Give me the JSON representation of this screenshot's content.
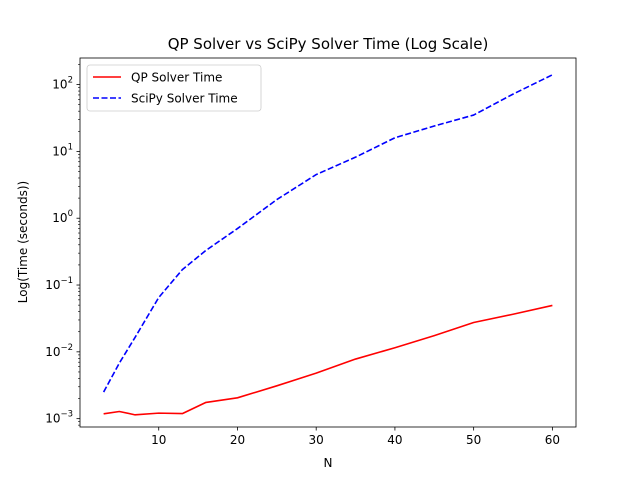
{
  "chart_data": {
    "type": "line",
    "title": "QP Solver vs SciPy Solver Time (Log Scale)",
    "xlabel": "N",
    "ylabel": "Log(Time (seconds))",
    "xlim": [
      0,
      63
    ],
    "ylim": [
      0.00075,
      250
    ],
    "y_scale": "log",
    "x_ticks": [
      10,
      20,
      30,
      40,
      50,
      60
    ],
    "y_ticks": [
      {
        "value": 0.001,
        "base": "10",
        "exp": "−3"
      },
      {
        "value": 0.01,
        "base": "10",
        "exp": "−2"
      },
      {
        "value": 0.1,
        "base": "10",
        "exp": "−1"
      },
      {
        "value": 1,
        "base": "10",
        "exp": "0"
      },
      {
        "value": 10,
        "base": "10",
        "exp": "1"
      },
      {
        "value": 100,
        "base": "10",
        "exp": "2"
      }
    ],
    "grid": false,
    "legend_position": "top-left",
    "series": [
      {
        "name": "QP Solver Time",
        "color": "#ff0000",
        "style": "solid",
        "x": [
          3,
          5,
          7,
          10,
          13,
          16,
          20,
          25,
          30,
          35,
          40,
          45,
          50,
          55,
          60
        ],
        "y": [
          0.00118,
          0.00128,
          0.00114,
          0.00121,
          0.00119,
          0.00175,
          0.00205,
          0.0031,
          0.0048,
          0.0078,
          0.0115,
          0.0175,
          0.0275,
          0.0365,
          0.0495
        ]
      },
      {
        "name": "SciPy Solver Time",
        "color": "#0000ff",
        "style": "dashed",
        "x": [
          3,
          5,
          7,
          10,
          13,
          16,
          20,
          25,
          30,
          35,
          40,
          45,
          50,
          55,
          60
        ],
        "y": [
          0.0025,
          0.0068,
          0.0165,
          0.065,
          0.17,
          0.33,
          0.7,
          1.9,
          4.5,
          8.2,
          16,
          24,
          35,
          72,
          140
        ]
      }
    ]
  }
}
